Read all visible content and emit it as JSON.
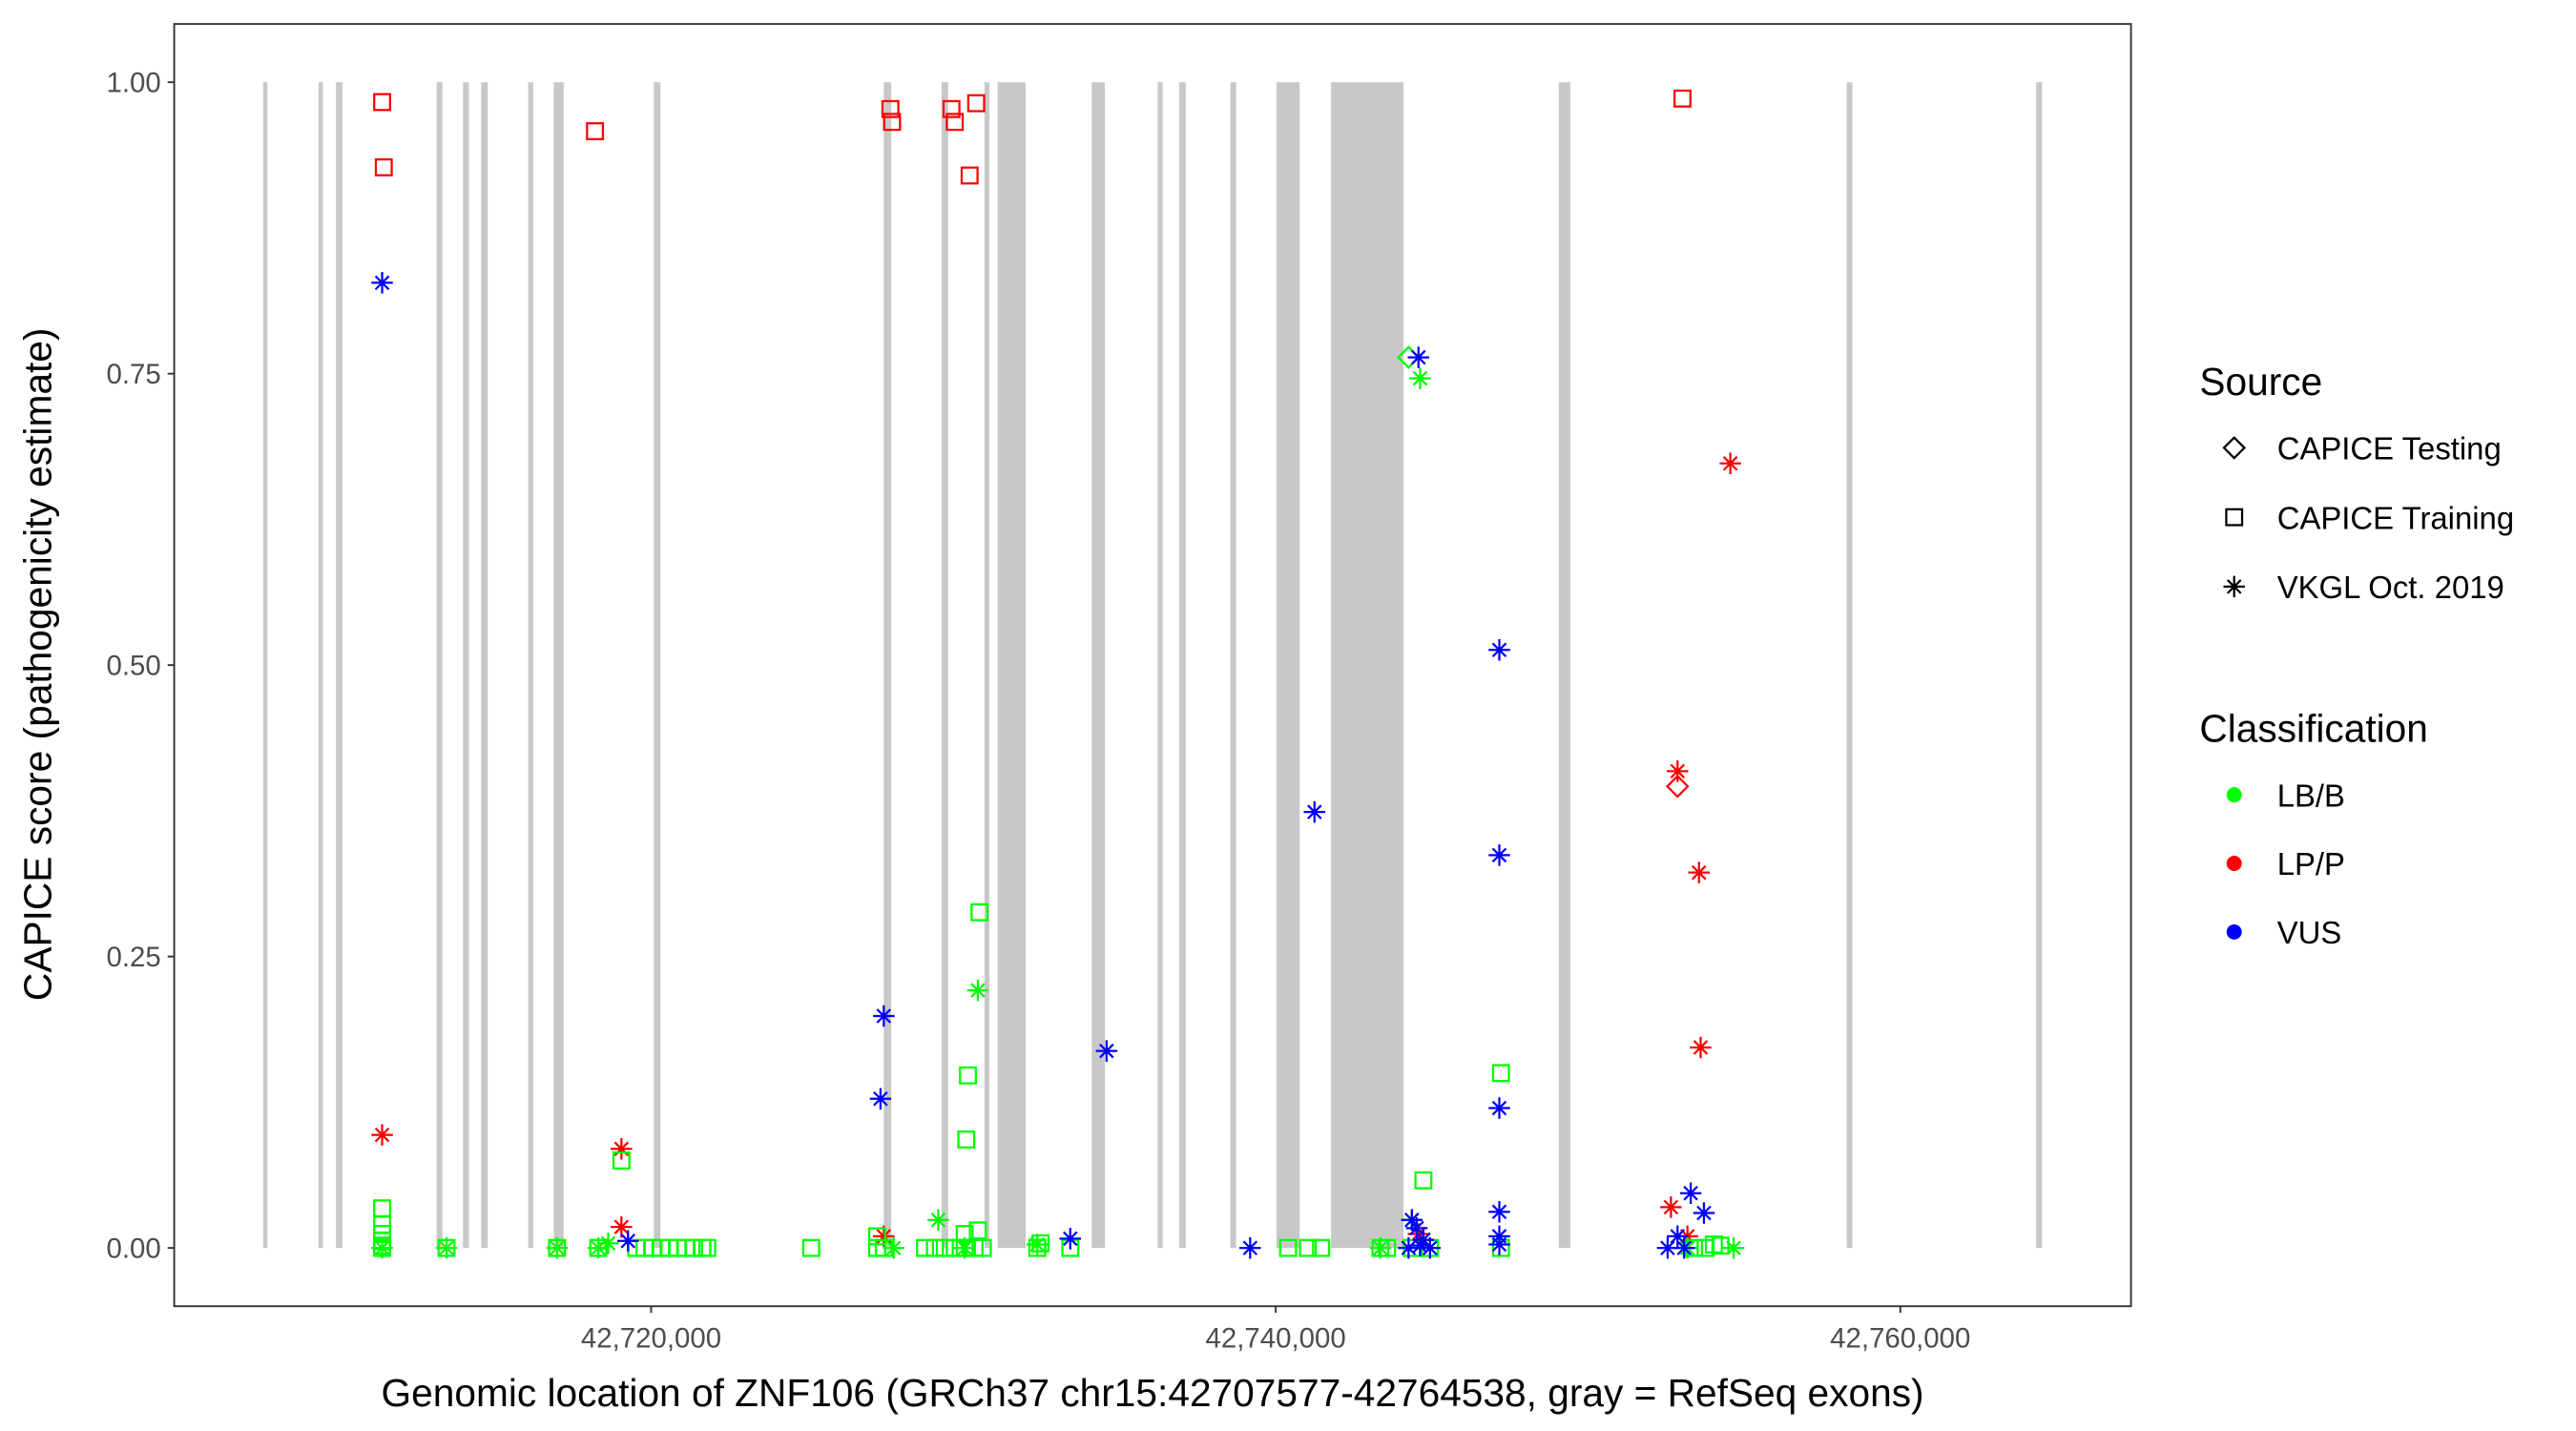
{
  "chart_data": {
    "type": "scatter",
    "title": "",
    "xlabel": "Genomic location of ZNF106 (GRCh37 chr15:42707577-42764538, gray = RefSeq exons)",
    "ylabel": "CAPICE score (pathogenicity estimate)",
    "xlim": [
      42704729,
      42767386
    ],
    "ylim": [
      -0.05,
      1.05
    ],
    "grid": false,
    "x_ticks": [
      {
        "value": 42720000,
        "label": "42,720,000"
      },
      {
        "value": 42740000,
        "label": "42,740,000"
      },
      {
        "value": 42760000,
        "label": "42,760,000"
      }
    ],
    "y_ticks": [
      {
        "value": 0.0,
        "label": "0.00"
      },
      {
        "value": 0.25,
        "label": "0.25"
      },
      {
        "value": 0.5,
        "label": "0.50"
      },
      {
        "value": 0.75,
        "label": "0.75"
      },
      {
        "value": 1.0,
        "label": "1.00"
      }
    ],
    "exons": [
      [
        42707577,
        42707650
      ],
      [
        42709353,
        42709459
      ],
      [
        42709908,
        42710119
      ],
      [
        42713131,
        42713316
      ],
      [
        42713976,
        42714166
      ],
      [
        42714557,
        42714769
      ],
      [
        42716063,
        42716222
      ],
      [
        42716882,
        42717199
      ],
      [
        42720085,
        42720296
      ],
      [
        42727450,
        42727688
      ],
      [
        42729300,
        42729511
      ],
      [
        42730674,
        42730832
      ],
      [
        42731096,
        42731995
      ],
      [
        42734108,
        42734531
      ],
      [
        42736222,
        42736381
      ],
      [
        42736909,
        42737120
      ],
      [
        42738547,
        42738732
      ],
      [
        42740026,
        42740766
      ],
      [
        42741770,
        42744095
      ],
      [
        42749062,
        42749432
      ],
      [
        42758283,
        42758468
      ],
      [
        42764350,
        42764538
      ]
    ],
    "exon_color": "#c8c8c8",
    "legend": {
      "placement": "right",
      "source": {
        "title": "Source",
        "items": [
          {
            "key": "testing",
            "label": "CAPICE Testing",
            "shape": "diamond"
          },
          {
            "key": "training",
            "label": "CAPICE Training",
            "shape": "square"
          },
          {
            "key": "vkgl",
            "label": "VKGL Oct. 2019",
            "shape": "asterisk"
          }
        ]
      },
      "classification": {
        "title": "Classification",
        "items": [
          {
            "key": "lbb",
            "label": "LB/B",
            "color": "#00ff00"
          },
          {
            "key": "lpp",
            "label": "LP/P",
            "color": "#ff0000"
          },
          {
            "key": "vus",
            "label": "VUS",
            "color": "#0000ff"
          }
        ]
      }
    },
    "point_fields": [
      "position",
      "score",
      "source",
      "classification"
    ],
    "points": [
      [
        42711387,
        0.983,
        "training",
        "lpp"
      ],
      [
        42711440,
        0.927,
        "training",
        "lpp"
      ],
      [
        42718203,
        0.958,
        "training",
        "lpp"
      ],
      [
        42727662,
        0.977,
        "training",
        "lpp"
      ],
      [
        42727715,
        0.966,
        "training",
        "lpp"
      ],
      [
        42729617,
        0.977,
        "training",
        "lpp"
      ],
      [
        42729723,
        0.966,
        "training",
        "lpp"
      ],
      [
        42730409,
        0.982,
        "training",
        "lpp"
      ],
      [
        42730198,
        0.92,
        "training",
        "lpp"
      ],
      [
        42753025,
        0.986,
        "training",
        "lpp"
      ],
      [
        42711387,
        0.097,
        "vkgl",
        "lpp"
      ],
      [
        42719049,
        0.085,
        "vkgl",
        "lpp"
      ],
      [
        42719049,
        0.018,
        "vkgl",
        "lpp"
      ],
      [
        42727450,
        0.01,
        "vkgl",
        "lpp"
      ],
      [
        42754557,
        0.673,
        "vkgl",
        "lpp"
      ],
      [
        42752866,
        0.409,
        "vkgl",
        "lpp"
      ],
      [
        42753553,
        0.322,
        "vkgl",
        "lpp"
      ],
      [
        42753606,
        0.172,
        "vkgl",
        "lpp"
      ],
      [
        42752655,
        0.035,
        "vkgl",
        "lpp"
      ],
      [
        42753184,
        0.01,
        "vkgl",
        "lpp"
      ],
      [
        42752866,
        0.396,
        "testing",
        "lpp"
      ],
      [
        42744570,
        0.012,
        "vkgl",
        "lpp"
      ],
      [
        42711387,
        0.034,
        "training",
        "lbb"
      ],
      [
        42711387,
        0.02,
        "training",
        "lbb"
      ],
      [
        42711387,
        0.012,
        "training",
        "lbb"
      ],
      [
        42711387,
        0.006,
        "training",
        "lbb"
      ],
      [
        42711387,
        0.002,
        "training",
        "lbb"
      ],
      [
        42711387,
        0.0,
        "training",
        "lbb"
      ],
      [
        42711387,
        0.0,
        "vkgl",
        "lbb"
      ],
      [
        42713448,
        0.0,
        "training",
        "lbb"
      ],
      [
        42713448,
        0.0,
        "vkgl",
        "lbb"
      ],
      [
        42716988,
        0.0,
        "training",
        "lbb"
      ],
      [
        42716988,
        0.0,
        "vkgl",
        "lbb"
      ],
      [
        42718309,
        0.0,
        "training",
        "lbb"
      ],
      [
        42718309,
        0.0,
        "vkgl",
        "lbb"
      ],
      [
        42718626,
        0.004,
        "vkgl",
        "lbb"
      ],
      [
        42719049,
        0.075,
        "training",
        "lbb"
      ],
      [
        42719525,
        0.0,
        "training",
        "lbb"
      ],
      [
        42719789,
        0.0,
        "training",
        "lbb"
      ],
      [
        42720053,
        0.0,
        "training",
        "lbb"
      ],
      [
        42720317,
        0.0,
        "training",
        "lbb"
      ],
      [
        42720581,
        0.0,
        "training",
        "lbb"
      ],
      [
        42720846,
        0.0,
        "training",
        "lbb"
      ],
      [
        42721110,
        0.0,
        "training",
        "lbb"
      ],
      [
        42721374,
        0.0,
        "training",
        "lbb"
      ],
      [
        42721638,
        0.0,
        "training",
        "lbb"
      ],
      [
        42721797,
        0.0,
        "training",
        "lbb"
      ],
      [
        42725125,
        0.0,
        "training",
        "lbb"
      ],
      [
        42727239,
        0.01,
        "training",
        "lbb"
      ],
      [
        42727239,
        0.0,
        "training",
        "lbb"
      ],
      [
        42727450,
        0.0,
        "training",
        "lbb"
      ],
      [
        42727767,
        0.0,
        "vkgl",
        "lbb"
      ],
      [
        42729194,
        0.024,
        "vkgl",
        "lbb"
      ],
      [
        42728771,
        0.0,
        "training",
        "lbb"
      ],
      [
        42729088,
        0.0,
        "training",
        "lbb"
      ],
      [
        42729405,
        0.0,
        "training",
        "lbb"
      ],
      [
        42729723,
        0.0,
        "training",
        "lbb"
      ],
      [
        42730040,
        0.0,
        "training",
        "lbb"
      ],
      [
        42730357,
        0.0,
        "training",
        "lbb"
      ],
      [
        42730621,
        0.0,
        "training",
        "lbb"
      ],
      [
        42730040,
        0.012,
        "training",
        "lbb"
      ],
      [
        42730462,
        0.015,
        "training",
        "lbb"
      ],
      [
        42730040,
        0.0,
        "vkgl",
        "lbb"
      ],
      [
        42730515,
        0.288,
        "training",
        "lbb"
      ],
      [
        42730462,
        0.221,
        "vkgl",
        "lbb"
      ],
      [
        42730145,
        0.148,
        "training",
        "lbb"
      ],
      [
        42730092,
        0.093,
        "training",
        "lbb"
      ],
      [
        42732365,
        0.0,
        "training",
        "lbb"
      ],
      [
        42732365,
        0.003,
        "vkgl",
        "lbb"
      ],
      [
        42732471,
        0.004,
        "training",
        "lbb"
      ],
      [
        42733421,
        0.0,
        "training",
        "lbb"
      ],
      [
        42740396,
        0.0,
        "training",
        "lbb"
      ],
      [
        42741030,
        0.0,
        "training",
        "lbb"
      ],
      [
        42741453,
        0.0,
        "training",
        "lbb"
      ],
      [
        42743355,
        0.0,
        "training",
        "lbb"
      ],
      [
        42743355,
        0.0,
        "vkgl",
        "lbb"
      ],
      [
        42743566,
        0.0,
        "training",
        "lbb"
      ],
      [
        42744254,
        0.764,
        "testing",
        "lbb"
      ],
      [
        42744624,
        0.746,
        "vkgl",
        "lbb"
      ],
      [
        42744729,
        0.058,
        "training",
        "lbb"
      ],
      [
        42744359,
        0.024,
        "vkgl",
        "lbb"
      ],
      [
        42744359,
        0.0,
        "training",
        "lbb"
      ],
      [
        42744940,
        0.0,
        "training",
        "lbb"
      ],
      [
        42747213,
        0.15,
        "training",
        "lbb"
      ],
      [
        42747213,
        0.0,
        "training",
        "lbb"
      ],
      [
        42753395,
        0.0,
        "training",
        "lbb"
      ],
      [
        42753765,
        0.0,
        "training",
        "lbb"
      ],
      [
        42754029,
        0.003,
        "training",
        "lbb"
      ],
      [
        42754240,
        0.002,
        "training",
        "lbb"
      ],
      [
        42753184,
        0.0,
        "vkgl",
        "lbb"
      ],
      [
        42754663,
        0.0,
        "vkgl",
        "lbb"
      ],
      [
        42711387,
        0.828,
        "vkgl",
        "vus"
      ],
      [
        42719260,
        0.006,
        "vkgl",
        "vus"
      ],
      [
        42727450,
        0.199,
        "vkgl",
        "vus"
      ],
      [
        42727345,
        0.128,
        "vkgl",
        "vus"
      ],
      [
        42733421,
        0.008,
        "vkgl",
        "vus"
      ],
      [
        42734584,
        0.169,
        "vkgl",
        "vus"
      ],
      [
        42739181,
        0.0,
        "vkgl",
        "vus"
      ],
      [
        42741242,
        0.374,
        "vkgl",
        "vus"
      ],
      [
        42744571,
        0.764,
        "vkgl",
        "vus"
      ],
      [
        42747160,
        0.513,
        "vkgl",
        "vus"
      ],
      [
        42747160,
        0.337,
        "vkgl",
        "vus"
      ],
      [
        42747160,
        0.12,
        "vkgl",
        "vus"
      ],
      [
        42747160,
        0.031,
        "vkgl",
        "vus"
      ],
      [
        42747160,
        0.01,
        "vkgl",
        "vus"
      ],
      [
        42747160,
        0.003,
        "vkgl",
        "vus"
      ],
      [
        42744359,
        0.024,
        "vkgl",
        "vus"
      ],
      [
        42744517,
        0.017,
        "vkgl",
        "vus"
      ],
      [
        42744729,
        0.007,
        "vkgl",
        "vus"
      ],
      [
        42744940,
        0.0,
        "vkgl",
        "vus"
      ],
      [
        42744254,
        0.0,
        "vkgl",
        "vus"
      ],
      [
        42744624,
        0.002,
        "vkgl",
        "vus"
      ],
      [
        42753289,
        0.047,
        "vkgl",
        "vus"
      ],
      [
        42753712,
        0.03,
        "vkgl",
        "vus"
      ],
      [
        42752549,
        0.0,
        "vkgl",
        "vus"
      ],
      [
        42752866,
        0.01,
        "vkgl",
        "vus"
      ],
      [
        42753078,
        0.0,
        "vkgl",
        "vus"
      ]
    ]
  }
}
